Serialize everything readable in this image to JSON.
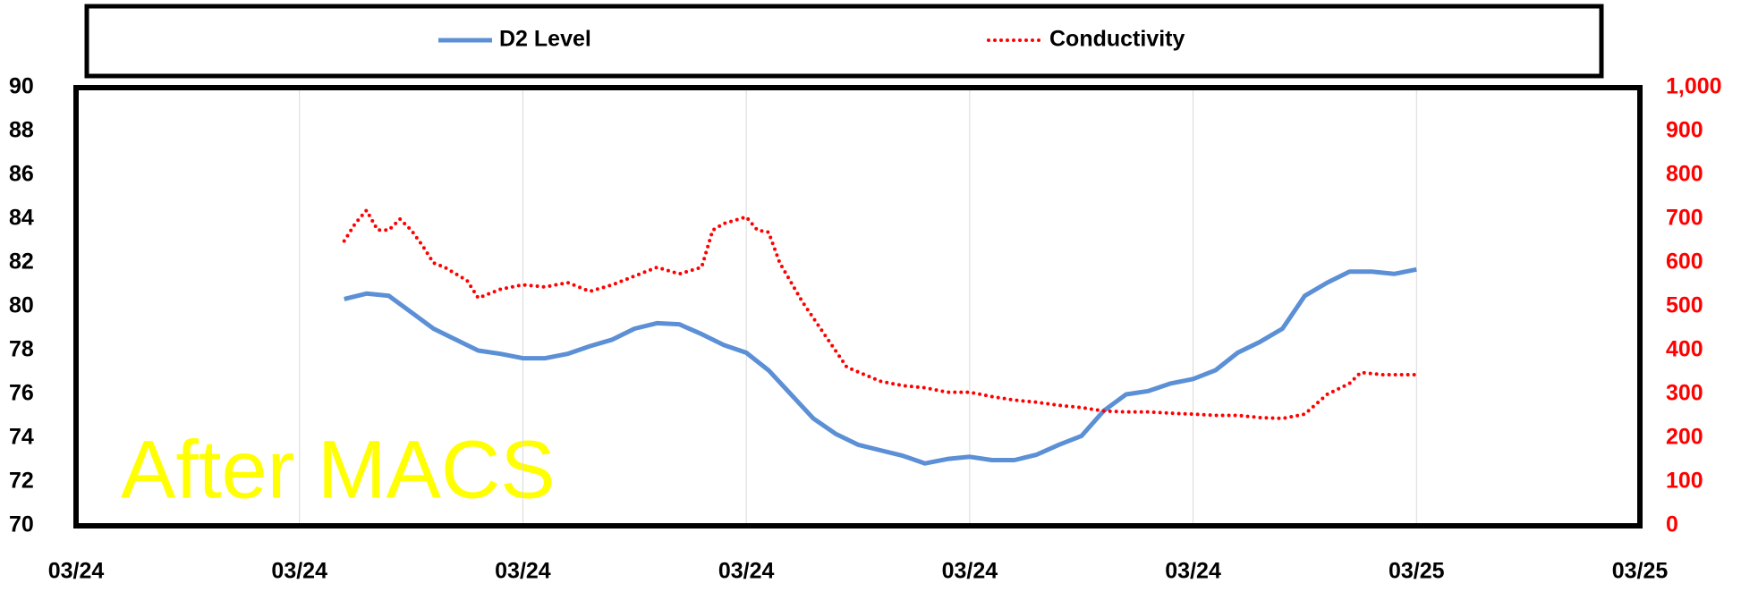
{
  "chart_data": {
    "type": "line",
    "annotation": "After MACS",
    "xlim": [
      0,
      7
    ],
    "xticks": [
      {
        "value": 0,
        "label": "03/24"
      },
      {
        "value": 1,
        "label": "03/24"
      },
      {
        "value": 2,
        "label": "03/24"
      },
      {
        "value": 3,
        "label": "03/24"
      },
      {
        "value": 4,
        "label": "03/24"
      },
      {
        "value": 5,
        "label": "03/24"
      },
      {
        "value": 6,
        "label": "03/25"
      },
      {
        "value": 7,
        "label": "03/25"
      }
    ],
    "ylim": [
      70,
      90
    ],
    "yticks": [
      70,
      72,
      74,
      76,
      78,
      80,
      82,
      84,
      86,
      88,
      90
    ],
    "y2lim": [
      0,
      1000
    ],
    "y2ticks": [
      0,
      100,
      200,
      300,
      400,
      500,
      600,
      700,
      800,
      900,
      {
        "value": 1000,
        "label": "1,000"
      }
    ],
    "grid": true,
    "legend": "top",
    "series": [
      {
        "name": "D2 Level",
        "color": "#5b8fd6",
        "style": "solid",
        "x": [
          1.2,
          1.3,
          1.4,
          1.5,
          1.6,
          1.7,
          1.8,
          1.9,
          2.0,
          2.1,
          2.2,
          2.3,
          2.4,
          2.5,
          2.6,
          2.7,
          2.8,
          2.9,
          3.0,
          3.1,
          3.2,
          3.3,
          3.4,
          3.5,
          3.6,
          3.7,
          3.8,
          3.9,
          4.0,
          4.1,
          4.2,
          4.3,
          4.4,
          4.5,
          4.6,
          4.7,
          4.8,
          4.9,
          5.0,
          5.1,
          5.2,
          5.3,
          5.4,
          5.5,
          5.6,
          5.7,
          5.8,
          5.9,
          6.0
        ],
        "values": [
          80.35,
          80.6,
          80.5,
          79.75,
          79,
          78.5,
          78,
          77.85,
          77.65,
          77.65,
          77.85,
          78.2,
          78.5,
          79,
          79.25,
          79.2,
          78.75,
          78.25,
          77.9,
          77.1,
          76,
          74.9,
          74.2,
          73.7,
          73.45,
          73.2,
          72.85,
          73.05,
          73.15,
          73,
          73,
          73.25,
          73.7,
          74.1,
          75.25,
          76,
          76.15,
          76.5,
          76.7,
          77.1,
          77.9,
          78.4,
          79,
          80.5,
          81.1,
          81.6,
          81.6,
          81.5,
          81.7
        ]
      },
      {
        "name": "Conductivity",
        "color": "#ff0000",
        "style": "dotted",
        "axis": "y2",
        "x": [
          1.2,
          1.25,
          1.3,
          1.35,
          1.4,
          1.45,
          1.5,
          1.55,
          1.6,
          1.65,
          1.7,
          1.75,
          1.8,
          1.9,
          2.0,
          2.1,
          2.2,
          2.3,
          2.4,
          2.5,
          2.6,
          2.7,
          2.8,
          2.85,
          2.9,
          3.0,
          3.05,
          3.1,
          3.15,
          3.25,
          3.35,
          3.45,
          3.6,
          3.7,
          3.8,
          3.9,
          4.0,
          4.1,
          4.2,
          4.3,
          4.4,
          4.5,
          4.6,
          4.7,
          4.8,
          4.9,
          5.0,
          5.1,
          5.2,
          5.3,
          5.4,
          5.5,
          5.6,
          5.7,
          5.75,
          5.85,
          5.95,
          6.0
        ],
        "values": [
          650,
          690,
          720,
          675,
          675,
          700,
          675,
          640,
          600,
          590,
          575,
          560,
          520,
          540,
          550,
          545,
          555,
          535,
          550,
          570,
          590,
          575,
          590,
          675,
          690,
          705,
          675,
          670,
          600,
          512,
          437,
          362,
          330,
          320,
          315,
          305,
          305,
          295,
          287,
          282,
          275,
          270,
          262,
          260,
          260,
          257,
          255,
          252,
          252,
          247,
          245,
          255,
          300,
          325,
          350,
          345,
          345,
          345
        ]
      }
    ]
  }
}
